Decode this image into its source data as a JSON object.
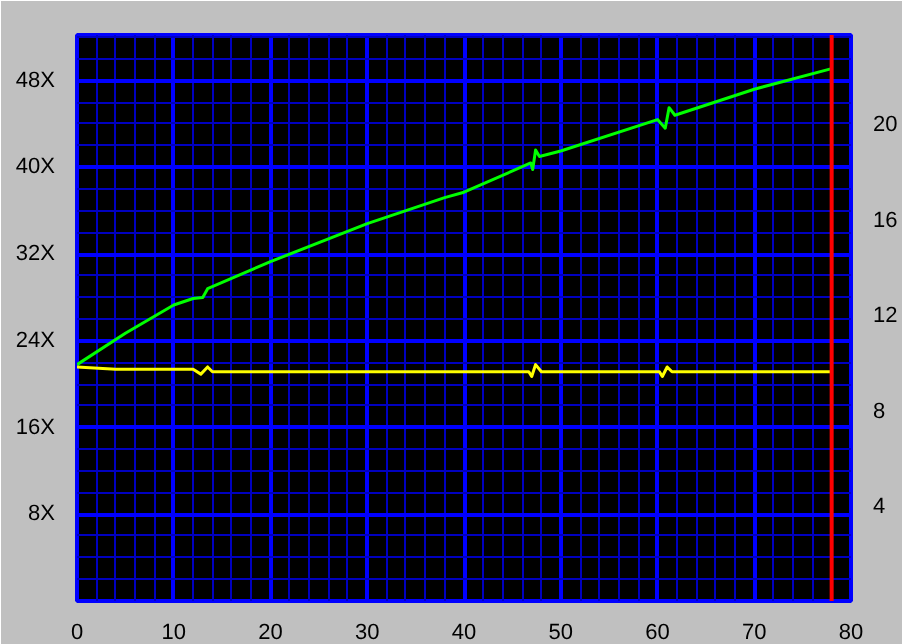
{
  "chart_data": {
    "type": "line",
    "grid": true,
    "xlim": [
      0,
      80
    ],
    "xticks": [
      0,
      10,
      20,
      30,
      40,
      50,
      60,
      70,
      80
    ],
    "ylim": [
      0,
      52.2
    ],
    "yticks": [
      {
        "value": 8,
        "label": "8X"
      },
      {
        "value": 16,
        "label": "16X"
      },
      {
        "value": 24,
        "label": "24X"
      },
      {
        "value": 32,
        "label": "32X"
      },
      {
        "value": 40,
        "label": "40X"
      },
      {
        "value": 48,
        "label": "48X"
      }
    ],
    "y2lim": [
      0,
      23.7
    ],
    "y2ticks": [
      4,
      8,
      12,
      16,
      20
    ],
    "series": [
      {
        "color": "#00ff00",
        "x": [
          0,
          5,
          10,
          12,
          13,
          13.5,
          20,
          30,
          38,
          40,
          46.9,
          47.1,
          47.4,
          47.8,
          50,
          60,
          60.8,
          61.2,
          61.8,
          70,
          78
        ],
        "values": [
          21.8,
          24.7,
          27.3,
          27.9,
          28,
          28.8,
          31.3,
          34.8,
          37.2,
          37.7,
          40.4,
          39.8,
          41.6,
          41,
          41.5,
          44.4,
          43.6,
          45.5,
          44.8,
          47.2,
          49.1
        ]
      },
      {
        "color": "#ffff00",
        "axis": "y2",
        "x": [
          0,
          4,
          12,
          12.8,
          13.5,
          14,
          46.7,
          47,
          47.4,
          48,
          60.2,
          60.5,
          61,
          61.5,
          78
        ],
        "values": [
          9.8,
          9.7,
          9.7,
          9.5,
          9.8,
          9.6,
          9.6,
          9.4,
          9.9,
          9.6,
          9.6,
          9.4,
          9.8,
          9.6,
          9.6
        ]
      }
    ],
    "ref_lines": [
      {
        "axis": "x",
        "value": 78,
        "color": "#ff0000"
      }
    ]
  }
}
